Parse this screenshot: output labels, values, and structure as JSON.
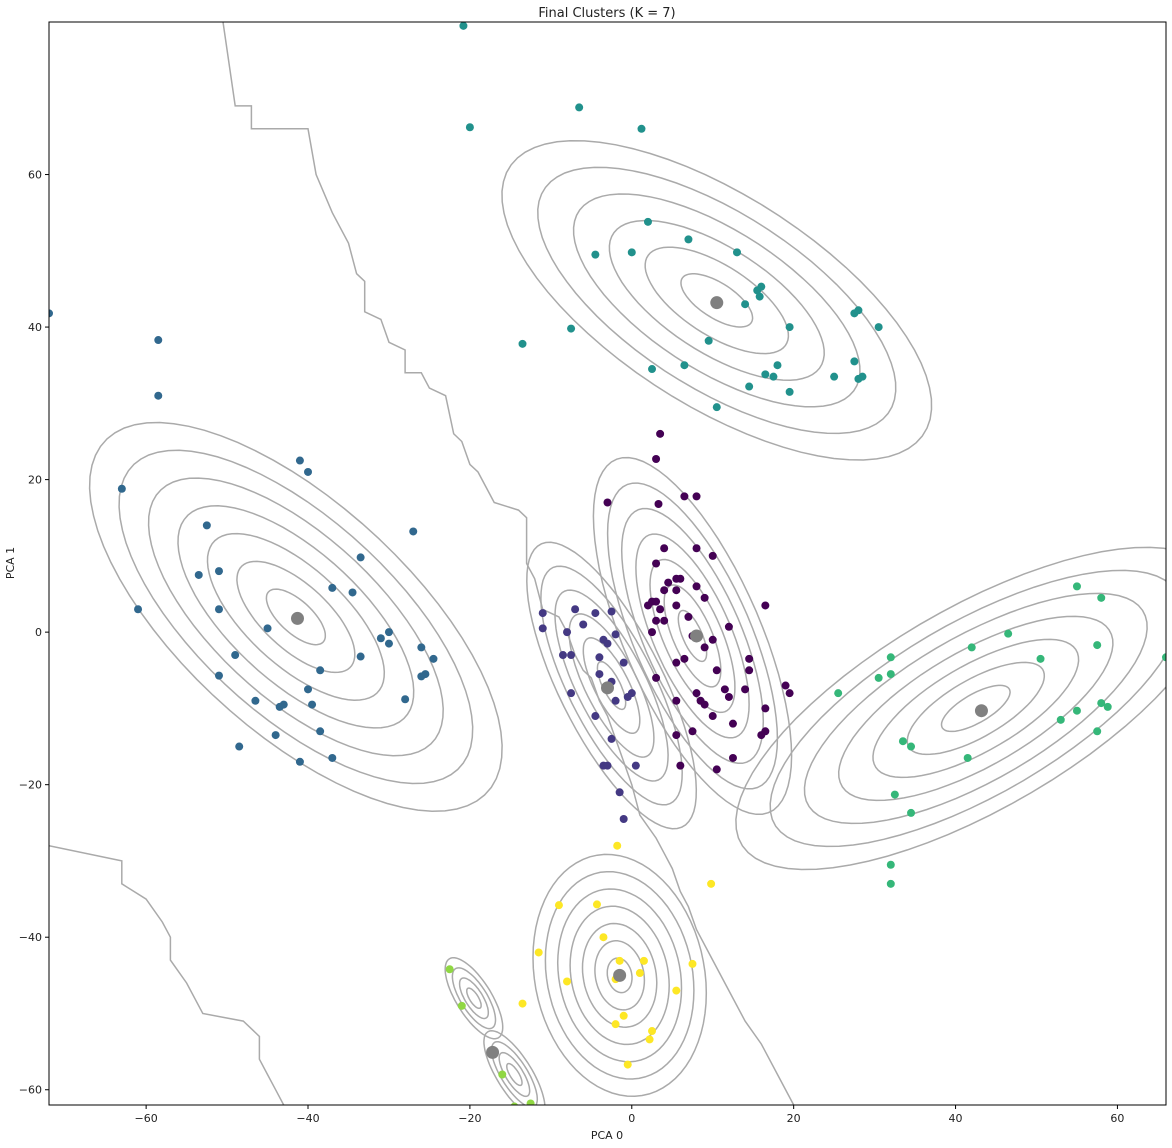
{
  "chart_data": {
    "type": "scatter",
    "title": "Final Clusters (K = 7)",
    "xlabel": "PCA 0",
    "ylabel": "PCA 1",
    "xlim": [
      -72,
      66
    ],
    "ylim": [
      -62,
      80
    ],
    "xticks": [
      -60,
      -40,
      -20,
      0,
      20,
      40,
      60
    ],
    "yticks": [
      -60,
      -40,
      -20,
      0,
      20,
      40,
      60
    ],
    "xtick_labels": [
      "−60",
      "−40",
      "−20",
      "0",
      "20",
      "40",
      "60"
    ],
    "ytick_labels": [
      "−60",
      "−40",
      "−20",
      "0",
      "20",
      "40",
      "60"
    ],
    "grid": false,
    "colors": {
      "c0": "#440154",
      "c1": "#443983",
      "c2": "#31688e",
      "c3": "#21918c",
      "c4": "#35b779",
      "c5": "#90d743",
      "c6": "#fde725",
      "centroid": "#808080",
      "contour": "#aaaaaa"
    },
    "series": [
      {
        "color_key": "c0",
        "points": [
          [
            3.5,
            26
          ],
          [
            3,
            22.7
          ],
          [
            -3,
            17
          ],
          [
            3.3,
            16.8
          ],
          [
            6.5,
            17.8
          ],
          [
            8,
            17.8
          ],
          [
            4,
            11
          ],
          [
            8,
            11
          ],
          [
            10,
            10
          ],
          [
            3,
            9
          ],
          [
            6,
            7
          ],
          [
            4.5,
            6.5
          ],
          [
            5.5,
            7
          ],
          [
            4,
            5.5
          ],
          [
            5.5,
            5.5
          ],
          [
            8,
            6
          ],
          [
            9,
            4.5
          ],
          [
            2.5,
            4
          ],
          [
            3,
            4
          ],
          [
            2,
            3.5
          ],
          [
            3.5,
            3
          ],
          [
            5.5,
            3.5
          ],
          [
            16.5,
            3.5
          ],
          [
            7,
            2
          ],
          [
            4,
            1.5
          ],
          [
            3,
            1.5
          ],
          [
            2.5,
            0
          ],
          [
            7.5,
            -0.5
          ],
          [
            12,
            0.7
          ],
          [
            10,
            -1
          ],
          [
            9,
            -2
          ],
          [
            6.5,
            -3.5
          ],
          [
            5.5,
            -4
          ],
          [
            14.5,
            -3.5
          ],
          [
            10.5,
            -5
          ],
          [
            14.5,
            -5
          ],
          [
            3,
            -6
          ],
          [
            8,
            -8
          ],
          [
            14,
            -7.5
          ],
          [
            11.5,
            -7.5
          ],
          [
            12,
            -8.5
          ],
          [
            19,
            -7
          ],
          [
            19.5,
            -8
          ],
          [
            5.5,
            -9
          ],
          [
            8.5,
            -9
          ],
          [
            9,
            -9.5
          ],
          [
            10,
            -11
          ],
          [
            16.5,
            -10
          ],
          [
            12.5,
            -12
          ],
          [
            7.5,
            -13
          ],
          [
            16.5,
            -13
          ],
          [
            16,
            -13.5
          ],
          [
            5.5,
            -13.5
          ],
          [
            12.5,
            -16.5
          ],
          [
            6,
            -17.5
          ],
          [
            10.5,
            -18
          ]
        ]
      },
      {
        "color_key": "c1",
        "points": [
          [
            -11,
            2.5
          ],
          [
            -7,
            3
          ],
          [
            -4.5,
            2.5
          ],
          [
            -2.5,
            2.7
          ],
          [
            -6,
            1
          ],
          [
            -11,
            0.5
          ],
          [
            -8,
            0
          ],
          [
            -2,
            -0.3
          ],
          [
            -3.5,
            -1
          ],
          [
            -3,
            -1.5
          ],
          [
            -8.5,
            -3
          ],
          [
            -7.5,
            -3
          ],
          [
            -4,
            -3.3
          ],
          [
            -1,
            -4
          ],
          [
            -4,
            -5.5
          ],
          [
            -2.5,
            -6.5
          ],
          [
            -7.5,
            -8
          ],
          [
            -0.5,
            -8.5
          ],
          [
            0,
            -8
          ],
          [
            -2,
            -9
          ],
          [
            -4.5,
            -11
          ],
          [
            -2.5,
            -14
          ],
          [
            0.5,
            -17.5
          ],
          [
            -3.5,
            -17.5
          ],
          [
            -3,
            -17.5
          ],
          [
            -1.5,
            -21
          ],
          [
            -1,
            -24.5
          ]
        ]
      },
      {
        "color_key": "c2",
        "points": [
          [
            -72,
            41.8
          ],
          [
            -58.5,
            38.3
          ],
          [
            -58.5,
            31
          ],
          [
            -41,
            22.5
          ],
          [
            -40,
            21
          ],
          [
            -63,
            18.8
          ],
          [
            -27,
            13.2
          ],
          [
            -52.5,
            14
          ],
          [
            -33.5,
            9.8
          ],
          [
            -53.5,
            7.5
          ],
          [
            -51,
            8
          ],
          [
            -37,
            5.8
          ],
          [
            -34.5,
            5.2
          ],
          [
            -61,
            3
          ],
          [
            -51,
            3
          ],
          [
            -45,
            0.5
          ],
          [
            -30,
            0
          ],
          [
            -31,
            -0.8
          ],
          [
            -30,
            -1.5
          ],
          [
            -26,
            -2
          ],
          [
            -33.5,
            -3.2
          ],
          [
            -49,
            -3
          ],
          [
            -24.5,
            -3.5
          ],
          [
            -25.5,
            -5.5
          ],
          [
            -26,
            -5.8
          ],
          [
            -38.5,
            -5
          ],
          [
            -51,
            -5.7
          ],
          [
            -40,
            -7.5
          ],
          [
            -28,
            -8.8
          ],
          [
            -46.5,
            -9
          ],
          [
            -43,
            -9.5
          ],
          [
            -43.5,
            -9.8
          ],
          [
            -39.5,
            -9.5
          ],
          [
            -38.5,
            -13
          ],
          [
            -44,
            -13.5
          ],
          [
            -48.5,
            -15
          ],
          [
            -37,
            -16.5
          ],
          [
            -41,
            -17
          ]
        ]
      },
      {
        "color_key": "c3",
        "points": [
          [
            -20.8,
            79.5
          ],
          [
            -6.5,
            68.8
          ],
          [
            -20,
            66.2
          ],
          [
            1.2,
            66
          ],
          [
            2,
            53.8
          ],
          [
            7,
            51.5
          ],
          [
            13,
            49.8
          ],
          [
            -4.5,
            49.5
          ],
          [
            0,
            49.8
          ],
          [
            16,
            45.3
          ],
          [
            15.5,
            44.8
          ],
          [
            15.8,
            44
          ],
          [
            14,
            43
          ],
          [
            27.5,
            41.8
          ],
          [
            28,
            42.2
          ],
          [
            19.5,
            40
          ],
          [
            30.5,
            40
          ],
          [
            -7.5,
            39.8
          ],
          [
            -13.5,
            37.8
          ],
          [
            9.5,
            38.2
          ],
          [
            18,
            35
          ],
          [
            27.5,
            35.5
          ],
          [
            6.5,
            35
          ],
          [
            2.5,
            34.5
          ],
          [
            16.5,
            33.8
          ],
          [
            17.5,
            33.5
          ],
          [
            25,
            33.5
          ],
          [
            28.5,
            33.5
          ],
          [
            28,
            33.2
          ],
          [
            14.5,
            32.2
          ],
          [
            19.5,
            31.5
          ],
          [
            10.5,
            29.5
          ]
        ]
      },
      {
        "color_key": "c4",
        "points": [
          [
            55,
            6
          ],
          [
            58,
            4.5
          ],
          [
            46.5,
            -0.2
          ],
          [
            57.5,
            -1.7
          ],
          [
            42,
            -2
          ],
          [
            50.5,
            -3.5
          ],
          [
            32,
            -3.3
          ],
          [
            66,
            -3.3
          ],
          [
            32,
            -5.5
          ],
          [
            30.5,
            -6
          ],
          [
            25.5,
            -8
          ],
          [
            58,
            -9.3
          ],
          [
            58.8,
            -9.8
          ],
          [
            55,
            -10.3
          ],
          [
            53,
            -11.5
          ],
          [
            57.5,
            -13
          ],
          [
            33.5,
            -14.3
          ],
          [
            34.5,
            -15
          ],
          [
            41.5,
            -16.5
          ],
          [
            32.5,
            -21.3
          ],
          [
            34.5,
            -23.7
          ],
          [
            32,
            -30.5
          ],
          [
            32,
            -33
          ]
        ]
      },
      {
        "color_key": "c5",
        "points": [
          [
            -22.5,
            -44.2
          ],
          [
            -21,
            -49
          ],
          [
            -16,
            -58
          ],
          [
            -14.5,
            -62.2
          ],
          [
            -12.5,
            -61.8
          ]
        ]
      },
      {
        "color_key": "c6",
        "points": [
          [
            -1.8,
            -28
          ],
          [
            9.8,
            -33
          ],
          [
            -9,
            -35.8
          ],
          [
            -4.3,
            -35.7
          ],
          [
            -3.5,
            -40
          ],
          [
            -11.5,
            -42
          ],
          [
            -2,
            -45.5
          ],
          [
            -1.5,
            -43.1
          ],
          [
            1.5,
            -43.1
          ],
          [
            7.5,
            -43.5
          ],
          [
            1,
            -44.7
          ],
          [
            -8,
            -45.8
          ],
          [
            5.5,
            -47
          ],
          [
            -13.5,
            -48.7
          ],
          [
            -1,
            -50.3
          ],
          [
            -2,
            -51.4
          ],
          [
            2.5,
            -52.3
          ],
          [
            2.2,
            -53.4
          ],
          [
            -0.5,
            -56.7
          ]
        ]
      }
    ],
    "centroids": [
      [
        8,
        -0.5
      ],
      [
        -3,
        -7.3
      ],
      [
        -41.3,
        1.8
      ],
      [
        10.5,
        43.2
      ],
      [
        43.2,
        -10.3
      ],
      [
        -17.2,
        -55.1
      ],
      [
        -1.5,
        -45
      ]
    ]
  }
}
